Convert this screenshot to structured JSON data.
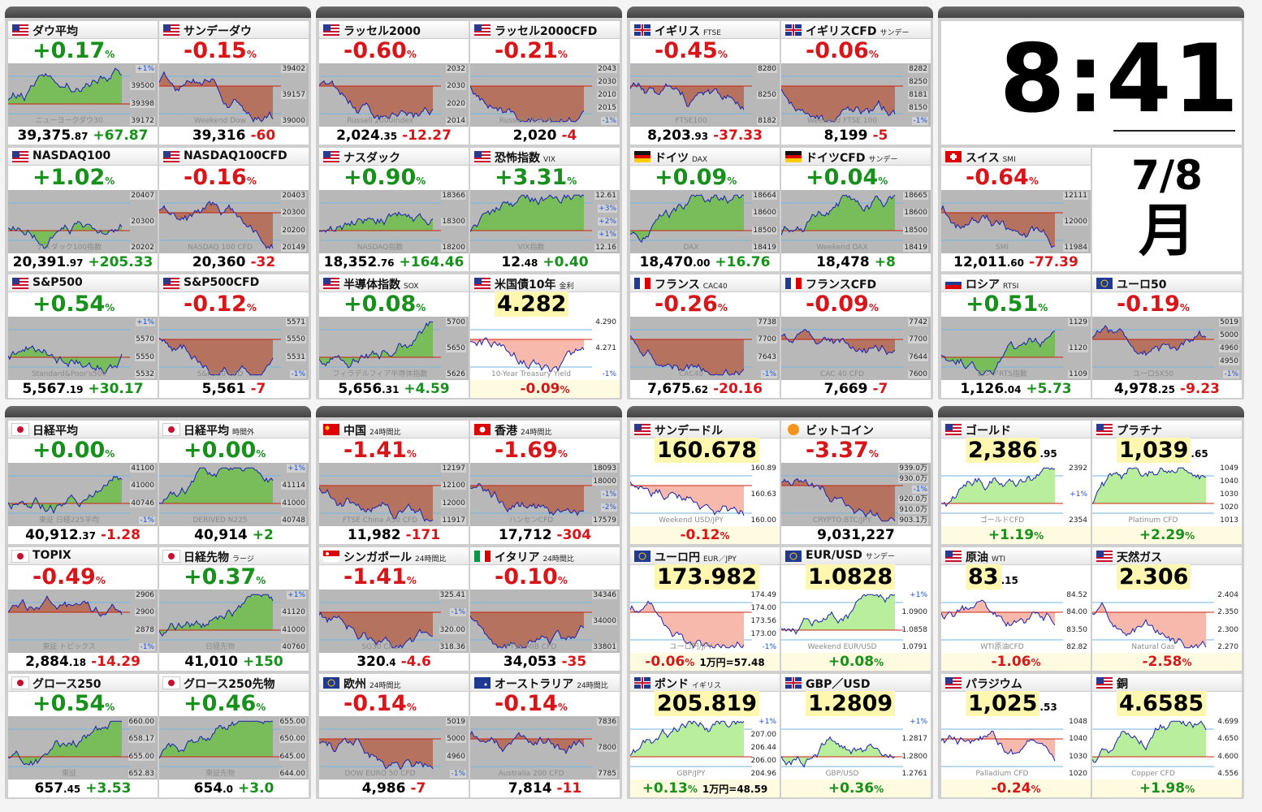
{
  "clock": {
    "time": "8:41",
    "date": "7/8",
    "weekday": "月"
  },
  "panels": [
    {
      "tiles": [
        {
          "flag": "us",
          "name": "ダウ平均",
          "big": [
            "+0.17",
            "%"
          ],
          "foot": [
            "39,375",
            ".87",
            "+67.87"
          ],
          "labels": [
            "+1%",
            "39500",
            "39398",
            "39172"
          ],
          "wm": "ニューヨークダウ30"
        },
        {
          "flag": "us",
          "name": "サンデーダウ",
          "big": [
            "-0.15",
            "%"
          ],
          "foot": [
            "39,316",
            "-60"
          ],
          "labels": [
            "39402",
            "39157",
            "39000"
          ],
          "wm": "Weekend Dow"
        },
        {
          "flag": "us",
          "name": "NASDAQ100",
          "big": [
            "+1.02",
            "%"
          ],
          "foot": [
            "20,391",
            ".97",
            "+205.33"
          ],
          "labels": [
            "20407",
            "20300",
            "20202"
          ],
          "wm": "ナスダック100指数"
        },
        {
          "flag": "us",
          "name": "NASDAQ100CFD",
          "big": [
            "-0.16",
            "%"
          ],
          "foot": [
            "20,360",
            "-32"
          ],
          "labels": [
            "20403",
            "20300",
            "20200",
            "20149"
          ],
          "wm": "NASDAQ 100 CFD"
        },
        {
          "flag": "us",
          "name": "S&P500",
          "big": [
            "+0.54",
            "%"
          ],
          "foot": [
            "5,567",
            ".19",
            "+30.17"
          ],
          "labels": [
            "+1%",
            "5570",
            "5550",
            "5532"
          ],
          "wm": "Standard&Poor's500"
        },
        {
          "flag": "us",
          "name": "S&P500CFD",
          "big": [
            "-0.12",
            "%"
          ],
          "foot": [
            "5,561",
            "-7"
          ],
          "labels": [
            "5571",
            "5550",
            "5531",
            "-1%"
          ],
          "wm": "S&P500 CFD"
        }
      ]
    },
    {
      "tiles": [
        {
          "flag": "us",
          "name": "ラッセル2000",
          "big": [
            "-0.60",
            "%"
          ],
          "foot": [
            "2,024",
            ".35",
            "-12.27"
          ],
          "labels": [
            "2032",
            "2030",
            "2020",
            "2014"
          ],
          "wm": "Russell 2000Index"
        },
        {
          "flag": "us",
          "name": "ラッセル2000CFD",
          "big": [
            "-0.21",
            "%"
          ],
          "foot": [
            "2,020",
            "-4"
          ],
          "labels": [
            "2043",
            "2030",
            "2010",
            "2015",
            "-1%"
          ],
          "wm": "Russell 2000 CFD"
        },
        {
          "flag": "us",
          "name": "ナスダック",
          "big": [
            "+0.90",
            "%"
          ],
          "foot": [
            "18,352",
            ".76",
            "+164.46"
          ],
          "labels": [
            "18366",
            "18300",
            "18200"
          ],
          "wm": "NASDAQ指数"
        },
        {
          "flag": "us",
          "name": "恐怖指数",
          "sub": "VIX",
          "big": [
            "+3.31",
            "%"
          ],
          "foot": [
            "12",
            ".48",
            "+0.40"
          ],
          "labels": [
            "12.61",
            "+3%",
            "+2%",
            "+1%",
            "12.16"
          ],
          "wm": "VIX指数"
        },
        {
          "flag": "us",
          "name": "半導体指数",
          "sub": "SOX",
          "big": [
            "+0.08",
            "%"
          ],
          "foot": [
            "5,656",
            ".31",
            "+4.59"
          ],
          "labels": [
            "5700",
            "5650",
            "5626"
          ],
          "wm": "フィラデルフィア半導体指数"
        },
        {
          "flag": "us",
          "name": "米国債10年",
          "sub": "金利",
          "big": [
            "4.282"
          ],
          "foot": [
            "-0.09",
            "%"
          ],
          "labels": [
            "4.290",
            "4.271",
            "-1%"
          ],
          "wm": "10-Year Treasury Yield"
        }
      ]
    },
    {
      "tiles": [
        {
          "flag": "uk",
          "name": "イギリス",
          "sub": "FTSE",
          "big": [
            "-0.45",
            "%"
          ],
          "foot": [
            "8,203",
            ".93",
            "-37.33"
          ],
          "labels": [
            "8280",
            "8250",
            "8182"
          ],
          "wm": "FTSE100"
        },
        {
          "flag": "uk",
          "name": "イギリスCFD",
          "sub": "サンデー",
          "big": [
            "-0.06",
            "%"
          ],
          "foot": [
            "8,199",
            "-5"
          ],
          "labels": [
            "8282",
            "8250",
            "8181",
            "8150",
            "-1%"
          ],
          "wm": "Weekend FTSE 100"
        },
        {
          "flag": "de",
          "name": "ドイツ",
          "sub": "DAX",
          "big": [
            "+0.09",
            "%"
          ],
          "foot": [
            "18,470",
            ".00",
            "+16.76"
          ],
          "labels": [
            "18664",
            "18600",
            "18500",
            "18419"
          ],
          "wm": "DAX"
        },
        {
          "flag": "de",
          "name": "ドイツCFD",
          "sub": "サンデー",
          "big": [
            "+0.04",
            "%"
          ],
          "foot": [
            "18,478",
            "+8"
          ],
          "labels": [
            "18665",
            "18600",
            "18500",
            "18419"
          ],
          "wm": "Weekend DAX"
        },
        {
          "flag": "fr",
          "name": "フランス",
          "sub": "CAC40",
          "big": [
            "-0.26",
            "%"
          ],
          "foot": [
            "7,675",
            ".62",
            "-20.16"
          ],
          "labels": [
            "7738",
            "7700",
            "7643",
            "-1%"
          ],
          "wm": "CAC40"
        },
        {
          "flag": "fr",
          "name": "フランスCFD",
          "big": [
            "-0.09",
            "%"
          ],
          "foot": [
            "7,669",
            "-7"
          ],
          "labels": [
            "7742",
            "7700",
            "7644",
            "7600"
          ],
          "wm": "CAC 40 CFD"
        }
      ]
    },
    {
      "tiles": [
        {
          "flag": "ch",
          "name": "スイス",
          "sub": "SMI",
          "big": [
            "-0.64",
            "%"
          ],
          "foot": [
            "12,011",
            ".60",
            "-77.39"
          ],
          "labels": [
            "12111",
            "12000",
            "11984"
          ],
          "wm": "SMI"
        },
        {
          "flag": "ru",
          "name": "ロシア",
          "sub": "RTSI",
          "big": [
            "+0.51",
            "%"
          ],
          "foot": [
            "1,126",
            ".04",
            "+5.73"
          ],
          "labels": [
            "1129",
            "1120",
            "1109"
          ],
          "wm": "ロシアRTS指数"
        },
        {
          "flag": "eu",
          "name": "ユーロ50",
          "big": [
            "-0.19",
            "%"
          ],
          "foot": [
            "4,978",
            ".25",
            "-9.23"
          ],
          "labels": [
            "5019",
            "5000",
            "4960",
            "4950",
            "-1%"
          ],
          "wm": "ユーロSX50"
        }
      ]
    },
    {
      "tiles": [
        {
          "flag": "jp",
          "name": "日経平均",
          "big": [
            "+0.00",
            "%"
          ],
          "foot": [
            "40,912",
            ".37",
            "-1.28"
          ],
          "labels": [
            "41100",
            "41000",
            "40746",
            "-1%"
          ],
          "wm": "東証 日経225平均"
        },
        {
          "flag": "jp",
          "name": "日経平均",
          "sub": "時間外",
          "big": [
            "+0.00",
            "%"
          ],
          "foot": [
            "40,914",
            "+2"
          ],
          "labels": [
            "+1%",
            "41114",
            "41000",
            "40748"
          ],
          "wm": "DERIVED N225"
        },
        {
          "flag": "jp",
          "name": "TOPIX",
          "big": [
            "-0.49",
            "%"
          ],
          "foot": [
            "2,884",
            ".18",
            "-14.29"
          ],
          "labels": [
            "2906",
            "2900",
            "2878",
            "-1%"
          ],
          "wm": "東証 トピックス"
        },
        {
          "flag": "jp",
          "name": "日経先物",
          "sub": "ラージ",
          "big": [
            "+0.37",
            "%"
          ],
          "foot": [
            "41,010",
            "+150"
          ],
          "labels": [
            "+1%",
            "41120",
            "41000",
            "40760"
          ],
          "wm": "日経先物"
        },
        {
          "flag": "jp",
          "name": "グロース250",
          "big": [
            "+0.54",
            "%"
          ],
          "foot": [
            "657",
            ".45",
            "+3.53"
          ],
          "labels": [
            "660.00",
            "658.17",
            "655.00",
            "652.83"
          ],
          "wm": "東証"
        },
        {
          "flag": "jp",
          "name": "グロース250先物",
          "big": [
            "+0.46",
            "%"
          ],
          "foot": [
            "654",
            ".0",
            "+3.0"
          ],
          "labels": [
            "655.00",
            "650.00",
            "645.00",
            "644.00"
          ],
          "wm": "東証先物"
        }
      ]
    },
    {
      "tiles": [
        {
          "flag": "cn",
          "name": "中国",
          "sub": "24時間比",
          "big": [
            "-1.41",
            "%"
          ],
          "foot": [
            "11,982",
            "-171"
          ],
          "labels": [
            "12197",
            "12100",
            "12000",
            "11917"
          ],
          "wm": "FTSE China A50 CFD"
        },
        {
          "flag": "hk",
          "name": "香港",
          "sub": "24時間比",
          "big": [
            "-1.69",
            "%"
          ],
          "foot": [
            "17,712",
            "-304"
          ],
          "labels": [
            "18093",
            "18000",
            "-1%",
            "-2%",
            "17579"
          ],
          "wm": "ハンセンCFD"
        },
        {
          "flag": "sg",
          "name": "シンガポール",
          "sub": "24時間比",
          "big": [
            "-1.41",
            "%"
          ],
          "foot": [
            "320",
            ".4",
            "-4.6"
          ],
          "labels": [
            "325.41",
            "-1%",
            "320.00",
            "318.36"
          ],
          "wm": "SG30 CFD"
        },
        {
          "flag": "it",
          "name": "イタリア",
          "sub": "24時間比",
          "big": [
            "-0.10",
            "%"
          ],
          "foot": [
            "34,053",
            "-35"
          ],
          "labels": [
            "34346",
            "34000",
            "33801"
          ],
          "wm": "FTSE MIB CFD"
        },
        {
          "flag": "eu",
          "name": "欧州",
          "sub": "24時間比",
          "big": [
            "-0.14",
            "%"
          ],
          "foot": [
            "4,986",
            "-7"
          ],
          "labels": [
            "5019",
            "5000",
            "4960",
            "-1%"
          ],
          "wm": "DOW EURO 50 CFD"
        },
        {
          "flag": "au",
          "name": "オーストラリア",
          "sub": "24時間比",
          "big": [
            "-0.14",
            "%"
          ],
          "foot": [
            "7,814",
            "-11"
          ],
          "labels": [
            "7836",
            "7800",
            "7785"
          ],
          "wm": "Australia 200 CFD"
        }
      ]
    },
    {
      "tiles": [
        {
          "flag": "us",
          "name": "サンデードル",
          "big": [
            "160.678"
          ],
          "foot": [
            "-0.12",
            "%"
          ],
          "labels": [
            "160.89",
            "160.63",
            "160.00"
          ],
          "wm": "Weekend USD/JPY"
        },
        {
          "flag": "btc",
          "name": "ビットコイン",
          "big": [
            "-3.37",
            "%"
          ],
          "foot": [
            "9,031,227"
          ],
          "labels": [
            "939.0万",
            "930.0万",
            "-1%",
            "920.0万",
            "910.0万",
            "903.1万"
          ],
          "wm": "CRYPTO:BTC/JPY"
        },
        {
          "flag": "eu",
          "name": "ユーロ円",
          "sub": "EUR／JPY",
          "big": [
            "173.982"
          ],
          "foot": [
            "-0.06",
            "%",
            "1万円=57.48"
          ],
          "labels": [
            "174.49",
            "174.00",
            "173.56",
            "173.00",
            "-1%"
          ],
          "wm": "ユーロ円/JPY"
        },
        {
          "flag": "eu",
          "name": "EUR/USD",
          "sub": "サンデー",
          "big": [
            "1.0828"
          ],
          "foot": [
            "+0.08",
            "%"
          ],
          "labels": [
            "+1%",
            "1.0900",
            "1.0858",
            "1.0791"
          ],
          "wm": "Weekend EUR/USD"
        },
        {
          "flag": "uk",
          "name": "ポンド",
          "sub": "イギリス",
          "big": [
            "205.819"
          ],
          "foot": [
            "+0.13",
            "%",
            "1万円=48.59"
          ],
          "labels": [
            "+1%",
            "207.00",
            "206.44",
            "206.00",
            "204.96"
          ],
          "wm": "GBP/JPY"
        },
        {
          "flag": "uk",
          "name": "GBP／USD",
          "big": [
            "1.2809"
          ],
          "foot": [
            "+0.36",
            "%"
          ],
          "labels": [
            "+1%",
            "1.2817",
            "1.2800",
            "1.2761"
          ],
          "wm": "GBP/USD"
        }
      ]
    },
    {
      "tiles": [
        {
          "flag": "us",
          "name": "ゴールド",
          "big": [
            "2,386",
            ".95"
          ],
          "foot": [
            "+1.19",
            "%"
          ],
          "labels": [
            "2392",
            "+1%",
            "2354"
          ],
          "wm": "ゴールドCFD"
        },
        {
          "flag": "us",
          "name": "プラチナ",
          "big": [
            "1,039",
            ".65"
          ],
          "foot": [
            "+2.29",
            "%"
          ],
          "labels": [
            "1049",
            "1040",
            "1030",
            "1020",
            "1013"
          ],
          "wm": "Platinum CFD"
        },
        {
          "flag": "us",
          "name": "原油",
          "sub": "WTI",
          "big": [
            "83",
            ".15"
          ],
          "foot": [
            "-1.06",
            "%"
          ],
          "labels": [
            "84.52",
            "84.00",
            "83.50",
            "82.82"
          ],
          "wm": "WTI原油CFD"
        },
        {
          "flag": "us",
          "name": "天然ガス",
          "big": [
            "2.306"
          ],
          "foot": [
            "-2.58",
            "%"
          ],
          "labels": [
            "2.404",
            "2.350",
            "2.300",
            "2.270"
          ],
          "wm": "Natural Gas"
        },
        {
          "flag": "us",
          "name": "パラジウム",
          "big": [
            "1,025",
            ".53"
          ],
          "foot": [
            "-0.24",
            "%"
          ],
          "labels": [
            "1048",
            "1040",
            "1030",
            "1020"
          ],
          "wm": "Palladium CFD"
        },
        {
          "flag": "us",
          "name": "銅",
          "big": [
            "4.6585"
          ],
          "foot": [
            "+1.98",
            "%"
          ],
          "labels": [
            "4.699",
            "4.650",
            "4.600",
            "4.556"
          ],
          "wm": "Copper CFD"
        }
      ]
    }
  ]
}
